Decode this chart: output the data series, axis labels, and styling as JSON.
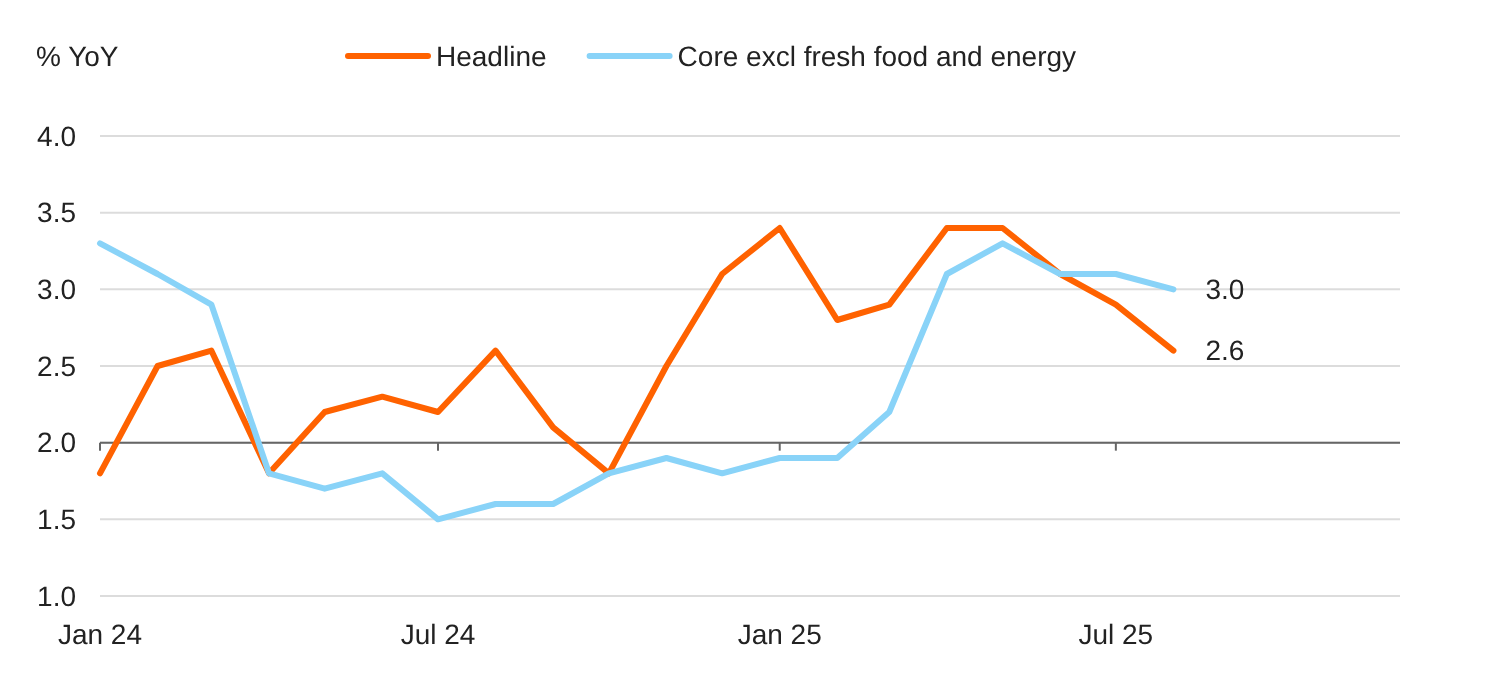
{
  "chart_data": {
    "type": "line",
    "ylabel": "% YoY",
    "x": [
      "2024-01",
      "2024-02",
      "2024-03",
      "2024-04",
      "2024-05",
      "2024-06",
      "2024-07",
      "2024-08",
      "2024-09",
      "2024-10",
      "2024-11",
      "2024-12",
      "2025-01",
      "2025-02",
      "2025-03",
      "2025-04",
      "2025-05",
      "2025-06",
      "2025-07",
      "2025-08"
    ],
    "series": [
      {
        "name": "Headline",
        "color": "#ff6200",
        "values": [
          1.8,
          2.5,
          2.6,
          1.8,
          2.2,
          2.3,
          2.2,
          2.6,
          2.1,
          1.8,
          2.5,
          3.1,
          3.4,
          2.8,
          2.9,
          3.4,
          3.4,
          3.1,
          2.9,
          2.6
        ],
        "value_labels": [
          null,
          null,
          null,
          null,
          null,
          null,
          null,
          null,
          null,
          null,
          null,
          null,
          null,
          null,
          null,
          null,
          null,
          null,
          null,
          "2.6"
        ]
      },
      {
        "name": "Core excl fresh food and energy",
        "color": "#89d3f8",
        "values": [
          3.3,
          3.1,
          2.9,
          1.8,
          1.7,
          1.8,
          1.5,
          1.6,
          1.6,
          1.8,
          1.9,
          1.8,
          1.9,
          1.9,
          2.2,
          3.1,
          3.3,
          3.1,
          3.1,
          3.0
        ],
        "value_labels": [
          null,
          null,
          null,
          null,
          null,
          null,
          null,
          null,
          null,
          null,
          null,
          null,
          null,
          null,
          null,
          null,
          null,
          null,
          null,
          "3.0"
        ]
      }
    ],
    "xlim": [
      "2024-01",
      "2025-12"
    ],
    "xticks": [
      {
        "value": "2024-01",
        "label": "Jan 24"
      },
      {
        "value": "2024-07",
        "label": "Jul 24"
      },
      {
        "value": "2025-01",
        "label": "Jan 25"
      },
      {
        "value": "2025-07",
        "label": "Jul 25"
      }
    ],
    "ylim": [
      1.0,
      4.0
    ],
    "yticks": [
      {
        "value": 1,
        "label": "1.0"
      },
      {
        "value": 1.5,
        "label": "1.5"
      },
      {
        "value": 2,
        "label": "2.0"
      },
      {
        "value": 2.5,
        "label": "2.5"
      },
      {
        "value": 3,
        "label": "3.0"
      },
      {
        "value": 3.5,
        "label": "3.5"
      },
      {
        "value": 4,
        "label": "4.0"
      }
    ],
    "ref_lines": [
      {
        "axis": "y",
        "value": 2,
        "color": "#666666"
      }
    ],
    "grid": "y",
    "legend": "top",
    "marker": "none",
    "line_style": "solid"
  }
}
